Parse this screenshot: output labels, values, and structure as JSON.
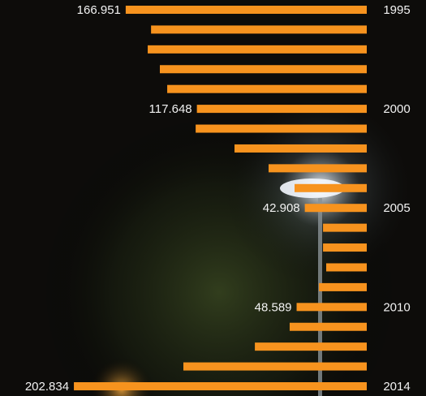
{
  "chart_data": {
    "type": "bar",
    "orientation": "horizontal-left",
    "categories": [
      "1995",
      null,
      null,
      null,
      null,
      "2000",
      null,
      null,
      null,
      null,
      "2005",
      null,
      null,
      null,
      null,
      "2010",
      null,
      null,
      null,
      "2014"
    ],
    "values": [
      166.951,
      149.4,
      151.7,
      143.3,
      138.2,
      117.648,
      118.5,
      91.6,
      68.0,
      50.0,
      42.908,
      30.3,
      30.3,
      28.1,
      33.1,
      48.589,
      53.4,
      77.5,
      127.0,
      202.834
    ],
    "value_labels": [
      "166.951",
      null,
      null,
      null,
      null,
      "117.648",
      null,
      null,
      null,
      null,
      "42.908",
      null,
      null,
      null,
      null,
      "48.589",
      null,
      null,
      null,
      "202.834"
    ],
    "color": "#f7931e",
    "xlim": [
      0,
      254
    ]
  }
}
